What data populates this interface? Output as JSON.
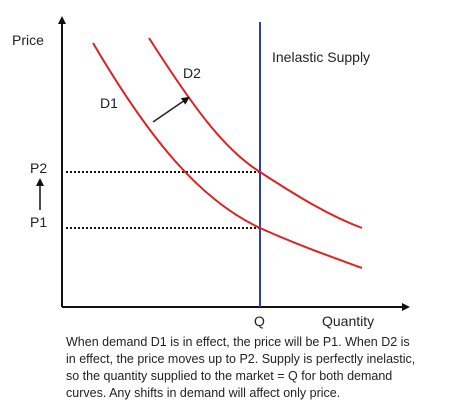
{
  "axes": {
    "y_label": "Price",
    "x_label": "Quantity"
  },
  "price_levels": [
    "P2",
    "P1"
  ],
  "quantity_label": "Q",
  "supply_label": "Inelastic Supply",
  "curves": [
    "D1",
    "D2"
  ],
  "caption": [
    "When demand D1 is in effect, the price will be P1.  When D2 is",
    "in effect, the price moves up to P2. Supply is perfectly inelastic,",
    "so the quantity supplied to the market = Q for both demand",
    "curves. Any shifts in demand will affect only price."
  ]
}
